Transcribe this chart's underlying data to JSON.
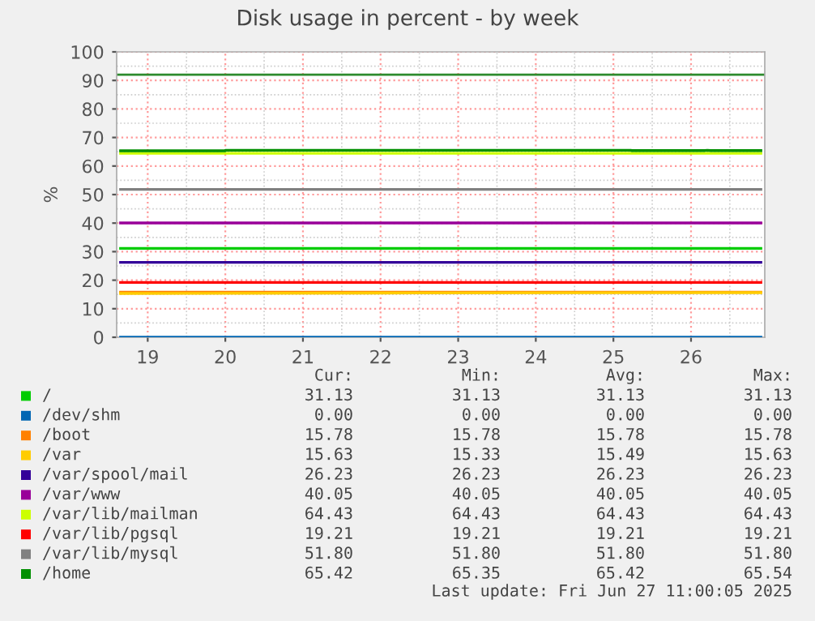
{
  "chart_data": {
    "type": "line",
    "title": "Disk usage in percent - by week",
    "ylabel": "%",
    "x": [
      18.65,
      26.9
    ],
    "xlim": [
      18.6,
      26.95
    ],
    "xticks": [
      19,
      20,
      21,
      22,
      23,
      24,
      25,
      26
    ],
    "ylim": [
      0,
      100
    ],
    "yticks": [
      0,
      10,
      20,
      30,
      40,
      50,
      60,
      70,
      80,
      90,
      100
    ],
    "grid": true,
    "legend": "bottom",
    "marker": "none",
    "line_style": "solid",
    "series": [
      {
        "name": "/",
        "color": "#00cc00",
        "values": [
          31.13,
          31.13
        ]
      },
      {
        "name": "/dev/shm",
        "color": "#0066b3",
        "values": [
          0,
          0
        ]
      },
      {
        "name": "/boot",
        "color": "#ff8000",
        "values": [
          15.78,
          15.78
        ]
      },
      {
        "name": "/var",
        "color": "#ffcc00",
        "x": [
          18.65,
          22,
          26.9
        ],
        "values": [
          15.33,
          15.49,
          15.63
        ]
      },
      {
        "name": "/var/spool/mail",
        "color": "#330099",
        "values": [
          26.23,
          26.23
        ]
      },
      {
        "name": "/var/www",
        "color": "#990099",
        "values": [
          40.05,
          40.05
        ]
      },
      {
        "name": "/var/lib/mailman",
        "color": "#ccff00",
        "values": [
          64.43,
          64.43
        ]
      },
      {
        "name": "/var/lib/pgsql",
        "color": "#ff0000",
        "values": [
          19.21,
          19.21
        ]
      },
      {
        "name": "/var/lib/mysql",
        "color": "#808080",
        "values": [
          51.8,
          51.8
        ]
      },
      {
        "name": "/home",
        "color": "#008f00",
        "x": [
          18.65,
          20.0,
          20.0,
          25.23,
          25.23,
          26.18,
          26.21,
          26.25,
          26.9
        ],
        "values": [
          65.35,
          65.35,
          65.54,
          65.54,
          65.42,
          65.42,
          65.54,
          65.42,
          65.42
        ]
      }
    ],
    "ref_lines": [
      {
        "axis": "y",
        "value": 92,
        "color": "#2e8b2e"
      }
    ],
    "annotations": [
      "Cur:",
      "Min:",
      "Avg:",
      "Max:",
      "31.13",
      "31.13",
      "31.13",
      "31.13",
      "0.00",
      "0.00",
      "0.00",
      "0.00",
      "15.78",
      "15.78",
      "15.78",
      "15.78",
      "15.63",
      "15.33",
      "15.49",
      "15.63",
      "26.23",
      "26.23",
      "26.23",
      "26.23",
      "40.05",
      "40.05",
      "40.05",
      "40.05",
      "64.43",
      "64.43",
      "64.43",
      "64.43",
      "19.21",
      "19.21",
      "19.21",
      "19.21",
      "51.80",
      "51.80",
      "51.80",
      "51.80",
      "65.42",
      "65.35",
      "65.42",
      "65.54",
      "Last update: Fri Jun 27 11:00:05 2025"
    ]
  }
}
